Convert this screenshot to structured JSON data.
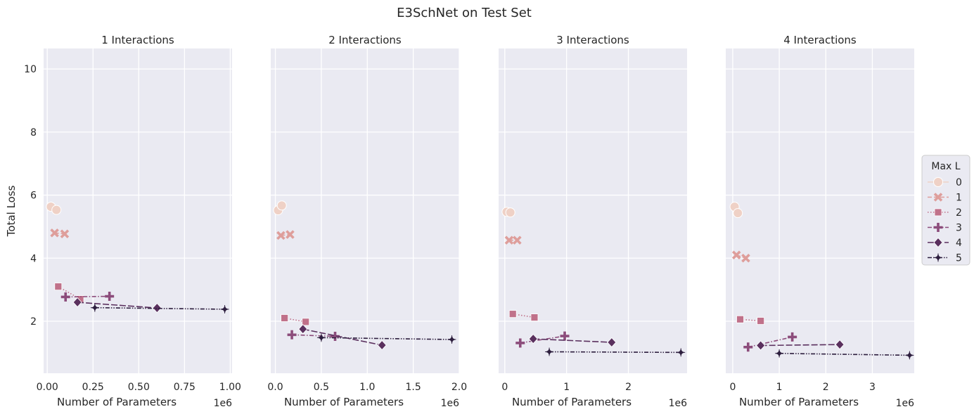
{
  "figure": {
    "title": "E3SchNet on Test Set"
  },
  "legend": {
    "title": "Max L",
    "placement": "right",
    "entries": [
      "0",
      "1",
      "2",
      "3",
      "4",
      "5"
    ]
  },
  "colors": {
    "background": "#eaeaf2",
    "grid": "#ffffff",
    "series": [
      "#efd1c6",
      "#de9e9b",
      "#c0718a",
      "#8c4c7b",
      "#5a305e",
      "#2d1e3e"
    ]
  },
  "chart_data": [
    {
      "type": "line",
      "title": "1 Interactions",
      "xlabel": "Number of Parameters",
      "ylabel": "Total Loss",
      "x_offset_label": "1e6",
      "xlim": [
        -0.02,
        1.01
      ],
      "ylim": [
        0.35,
        10.65
      ],
      "xticks": [
        0.0,
        0.25,
        0.5,
        0.75,
        1.0
      ],
      "xtick_labels": [
        "0.00",
        "0.25",
        "0.50",
        "0.75",
        "1.00"
      ],
      "yticks": [
        2,
        4,
        6,
        8,
        10
      ],
      "grid": true,
      "series": [
        {
          "name": "0",
          "marker": "circle",
          "linestyle": "solid",
          "points": [
            [
              0.02,
              5.63
            ],
            [
              0.05,
              5.53
            ]
          ]
        },
        {
          "name": "1",
          "marker": "x",
          "linestyle": "dashed",
          "points": [
            [
              0.04,
              4.8
            ],
            [
              0.095,
              4.77
            ]
          ]
        },
        {
          "name": "2",
          "marker": "square",
          "linestyle": "dotted",
          "points": [
            [
              0.06,
              3.1
            ],
            [
              0.18,
              2.7
            ]
          ]
        },
        {
          "name": "3",
          "marker": "plus",
          "linestyle": "dashdot",
          "points": [
            [
              0.1,
              2.77
            ],
            [
              0.34,
              2.79
            ]
          ]
        },
        {
          "name": "4",
          "marker": "diamond",
          "linestyle": "longdash",
          "points": [
            [
              0.165,
              2.6
            ],
            [
              0.6,
              2.42
            ]
          ]
        },
        {
          "name": "5",
          "marker": "star",
          "linestyle": "dashdotdot",
          "points": [
            [
              0.26,
              2.43
            ],
            [
              0.97,
              2.38
            ]
          ]
        }
      ]
    },
    {
      "type": "line",
      "title": "2 Interactions",
      "xlabel": "Number of Parameters",
      "ylabel": "",
      "x_offset_label": "1e6",
      "xlim": [
        -0.05,
        2.0
      ],
      "ylim": [
        0.35,
        10.65
      ],
      "xticks": [
        0.0,
        0.5,
        1.0,
        1.5,
        2.0
      ],
      "xtick_labels": [
        "0.0",
        "0.5",
        "1.0",
        "1.5",
        "2.0"
      ],
      "yticks": [
        2,
        4,
        6,
        8,
        10
      ],
      "grid": true,
      "series": [
        {
          "name": "0",
          "marker": "circle",
          "linestyle": "solid",
          "points": [
            [
              0.03,
              5.52
            ],
            [
              0.07,
              5.67
            ]
          ]
        },
        {
          "name": "1",
          "marker": "x",
          "linestyle": "dashed",
          "points": [
            [
              0.06,
              4.72
            ],
            [
              0.16,
              4.75
            ]
          ]
        },
        {
          "name": "2",
          "marker": "square",
          "linestyle": "dotted",
          "points": [
            [
              0.1,
              2.1
            ],
            [
              0.33,
              1.98
            ]
          ]
        },
        {
          "name": "3",
          "marker": "plus",
          "linestyle": "dashdot",
          "points": [
            [
              0.18,
              1.57
            ],
            [
              0.65,
              1.52
            ]
          ]
        },
        {
          "name": "4",
          "marker": "diamond",
          "linestyle": "longdash",
          "points": [
            [
              0.3,
              1.75
            ],
            [
              1.16,
              1.24
            ]
          ]
        },
        {
          "name": "5",
          "marker": "star",
          "linestyle": "dashdotdot",
          "points": [
            [
              0.5,
              1.48
            ],
            [
              1.92,
              1.42
            ]
          ]
        }
      ]
    },
    {
      "type": "line",
      "title": "3 Interactions",
      "xlabel": "Number of Parameters",
      "ylabel": "",
      "x_offset_label": "1e6",
      "xlim": [
        -0.1,
        2.95
      ],
      "ylim": [
        0.35,
        10.65
      ],
      "xticks": [
        0,
        1,
        2
      ],
      "xtick_labels": [
        "0",
        "1",
        "2"
      ],
      "yticks": [
        2,
        4,
        6,
        8,
        10
      ],
      "grid": true,
      "series": [
        {
          "name": "0",
          "marker": "circle",
          "linestyle": "solid",
          "points": [
            [
              0.03,
              5.47
            ],
            [
              0.09,
              5.45
            ]
          ]
        },
        {
          "name": "1",
          "marker": "x",
          "linestyle": "dashed",
          "points": [
            [
              0.07,
              4.57
            ],
            [
              0.2,
              4.57
            ]
          ]
        },
        {
          "name": "2",
          "marker": "square",
          "linestyle": "dotted",
          "points": [
            [
              0.13,
              2.23
            ],
            [
              0.48,
              2.12
            ]
          ]
        },
        {
          "name": "3",
          "marker": "plus",
          "linestyle": "dashdot",
          "points": [
            [
              0.25,
              1.31
            ],
            [
              0.97,
              1.53
            ]
          ]
        },
        {
          "name": "4",
          "marker": "diamond",
          "linestyle": "longdash",
          "points": [
            [
              0.46,
              1.44
            ],
            [
              1.73,
              1.33
            ]
          ]
        },
        {
          "name": "5",
          "marker": "star",
          "linestyle": "dashdotdot",
          "points": [
            [
              0.72,
              1.03
            ],
            [
              2.85,
              1.01
            ]
          ]
        }
      ]
    },
    {
      "type": "line",
      "title": "4 Interactions",
      "xlabel": "Number of Parameters",
      "ylabel": "",
      "x_offset_label": "1e6",
      "xlim": [
        -0.15,
        3.9
      ],
      "ylim": [
        0.35,
        10.65
      ],
      "xticks": [
        0,
        1,
        2,
        3
      ],
      "xtick_labels": [
        "0",
        "1",
        "2",
        "3"
      ],
      "yticks": [
        2,
        4,
        6,
        8,
        10
      ],
      "grid": true,
      "series": [
        {
          "name": "0",
          "marker": "circle",
          "linestyle": "solid",
          "points": [
            [
              0.04,
              5.63
            ],
            [
              0.11,
              5.43
            ]
          ]
        },
        {
          "name": "1",
          "marker": "x",
          "linestyle": "dashed",
          "points": [
            [
              0.08,
              4.1
            ],
            [
              0.28,
              4.0
            ]
          ]
        },
        {
          "name": "2",
          "marker": "square",
          "linestyle": "dotted",
          "points": [
            [
              0.16,
              2.06
            ],
            [
              0.6,
              2.01
            ]
          ]
        },
        {
          "name": "3",
          "marker": "plus",
          "linestyle": "dashdot",
          "points": [
            [
              0.33,
              1.18
            ],
            [
              1.28,
              1.5
            ]
          ]
        },
        {
          "name": "4",
          "marker": "diamond",
          "linestyle": "longdash",
          "points": [
            [
              0.6,
              1.23
            ],
            [
              2.3,
              1.26
            ]
          ]
        },
        {
          "name": "5",
          "marker": "star",
          "linestyle": "dashdotdot",
          "points": [
            [
              1.0,
              0.98
            ],
            [
              3.8,
              0.92
            ]
          ]
        }
      ]
    }
  ]
}
